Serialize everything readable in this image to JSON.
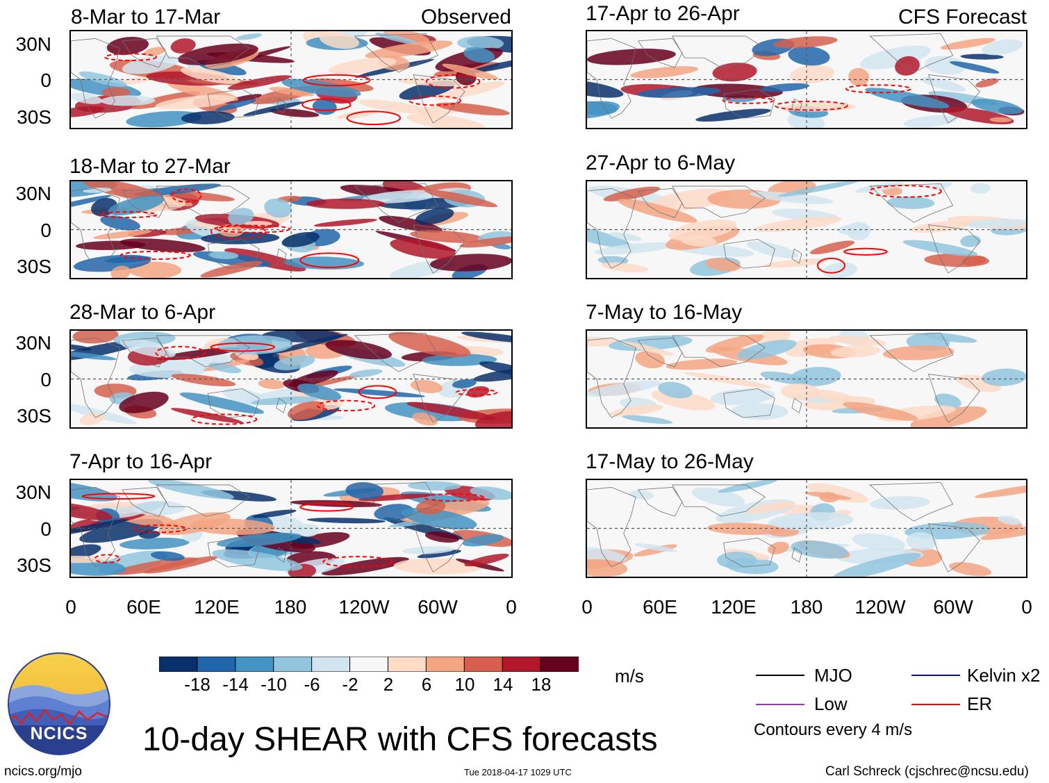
{
  "columns": {
    "observed_label": "Observed",
    "forecast_label": "CFS Forecast"
  },
  "panels": {
    "observed": [
      {
        "title": "8-Mar to 17-Mar"
      },
      {
        "title": "18-Mar to 27-Mar"
      },
      {
        "title": "28-Mar to 6-Apr"
      },
      {
        "title": "7-Apr to 16-Apr"
      }
    ],
    "forecast": [
      {
        "title": "17-Apr to 26-Apr"
      },
      {
        "title": "27-Apr to 6-May"
      },
      {
        "title": "7-May to 16-May"
      },
      {
        "title": "17-May to 26-May"
      }
    ]
  },
  "axes": {
    "lat_labels": [
      "30N",
      "0",
      "30S"
    ],
    "lon_labels": [
      "0",
      "60E",
      "120E",
      "180",
      "120W",
      "60W",
      "0"
    ]
  },
  "colorbar": {
    "ticks": [
      "-18",
      "-14",
      "-10",
      "-6",
      "-2",
      "2",
      "6",
      "10",
      "14",
      "18"
    ],
    "unit": "m/s",
    "colors": [
      "#08306b",
      "#2166ac",
      "#4393c3",
      "#92c5de",
      "#d1e5f0",
      "#f7f7f7",
      "#fddbc7",
      "#f4a582",
      "#d6604d",
      "#b2182b",
      "#67001f"
    ]
  },
  "legend": {
    "items": [
      {
        "label": "MJO",
        "color": "#000000"
      },
      {
        "label": "Kelvin x2",
        "color": "#0000ff"
      },
      {
        "label": "Low",
        "color": "#9933cc"
      },
      {
        "label": "ER",
        "color": "#ff0000"
      }
    ],
    "note": "Contours every 4 m/s"
  },
  "title": "10-day SHEAR with CFS forecasts",
  "logo_text": "NCICS",
  "footer": {
    "url": "ncics.org/mjo",
    "timestamp": "Tue 2018-04-17 1029 UTC",
    "credit": "Carl Schreck (cjschrec@ncsu.edu)"
  }
}
